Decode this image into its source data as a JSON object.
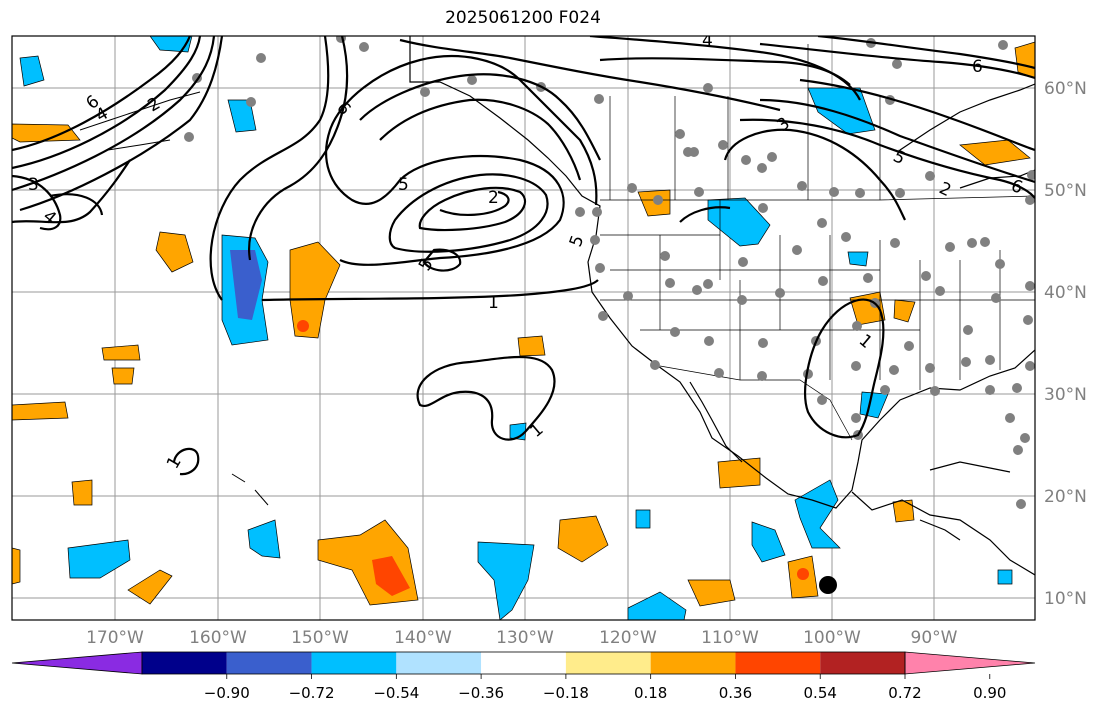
{
  "title": "2025061200 F024",
  "map": {
    "lon_labels": [
      "170°W",
      "160°W",
      "150°W",
      "140°W",
      "130°W",
      "120°W",
      "110°W",
      "100°W",
      "90°W"
    ],
    "lat_labels": [
      "60°N",
      "50°N",
      "40°N",
      "30°N",
      "20°N",
      "10°N"
    ],
    "contour_labels": [
      "1",
      "1",
      "1",
      "1",
      "2",
      "2",
      "2",
      "3",
      "3",
      "4",
      "4",
      "4",
      "5",
      "5",
      "5",
      "5",
      "6",
      "6",
      "6",
      "6"
    ]
  },
  "colorbar": {
    "ticks": [
      "−0.90",
      "−0.72",
      "−0.54",
      "−0.36",
      "−0.18",
      "0.18",
      "0.36",
      "0.54",
      "0.72",
      "0.90"
    ],
    "colors": [
      "#8a2be2",
      "#00008b",
      "#3a5fcd",
      "#00bfff",
      "#b0e2ff",
      "#ffffff",
      "#ffec8b",
      "#ffa500",
      "#ff4500",
      "#b22222",
      "#ff82ab"
    ]
  }
}
